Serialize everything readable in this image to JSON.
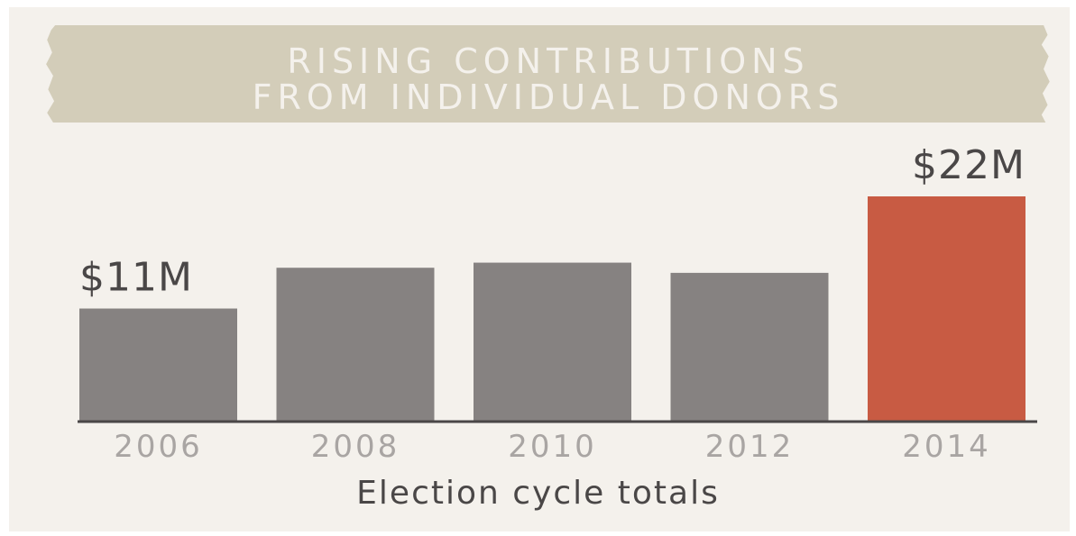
{
  "chart_data": {
    "type": "bar",
    "title": "RISING CONTRIBUTIONS FROM INDIVIDUAL DONORS",
    "title_lines": [
      "RISING CONTRIBUTIONS",
      "FROM INDIVIDUAL DONORS"
    ],
    "xlabel": "Election cycle totals",
    "ylabel": "",
    "categories": [
      "2006",
      "2008",
      "2010",
      "2012",
      "2014"
    ],
    "values": [
      11,
      15,
      15.5,
      14.5,
      22
    ],
    "unit": "$M",
    "data_labels": [
      "$11M",
      "",
      "",
      "",
      "$22M"
    ],
    "ylim": [
      0,
      22
    ],
    "grid": false,
    "legend": "none",
    "colors": {
      "default_bar": "#868281",
      "highlight_bar": "#c85b43",
      "highlight_category": "2014",
      "axis": "#4a4747",
      "tick_label": "#a9a5a3",
      "data_label": "#4a4747",
      "banner": "#d3cdb9",
      "background": "#f4f1ec"
    }
  }
}
